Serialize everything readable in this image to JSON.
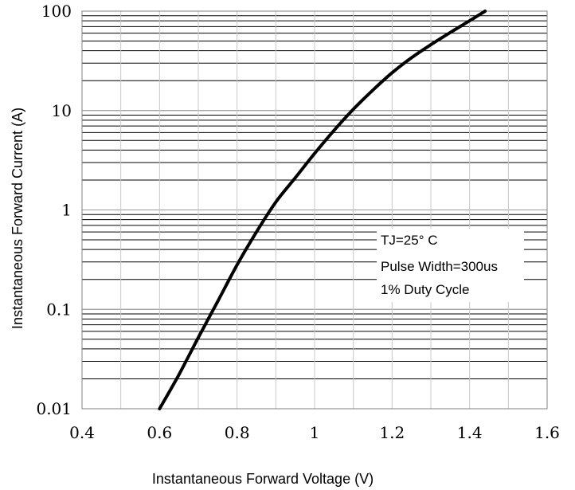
{
  "chart_data": {
    "type": "line",
    "title": "",
    "xlabel": "Instantaneous Forward Voltage (V)",
    "ylabel": "Instantaneous Forward Current (A)",
    "xlim": [
      0.4,
      1.6
    ],
    "ylim": [
      0.01,
      100
    ],
    "yscale": "log",
    "grid": true,
    "x_ticks": [
      {
        "value": 0.4,
        "label": "0.4"
      },
      {
        "value": 0.6,
        "label": "0.6"
      },
      {
        "value": 0.8,
        "label": "0.8"
      },
      {
        "value": 1.0,
        "label": "1"
      },
      {
        "value": 1.2,
        "label": "1.2"
      },
      {
        "value": 1.4,
        "label": "1.4"
      },
      {
        "value": 1.6,
        "label": "1.6"
      }
    ],
    "y_ticks": [
      {
        "value": 0.01,
        "label": "0.01"
      },
      {
        "value": 0.1,
        "label": "0.1"
      },
      {
        "value": 1,
        "label": "1"
      },
      {
        "value": 10,
        "label": "10"
      },
      {
        "value": 100,
        "label": "100"
      }
    ],
    "annotations": [
      "TJ=25° C",
      "Pulse Width=300us",
      "1% Duty Cycle"
    ],
    "series": [
      {
        "color": "#000000",
        "x": [
          0.6,
          0.65,
          0.7,
          0.75,
          0.8,
          0.85,
          0.9,
          0.95,
          1.0,
          1.05,
          1.1,
          1.15,
          1.2,
          1.25,
          1.3,
          1.35,
          1.4,
          1.44
        ],
        "y": [
          0.01,
          0.022,
          0.052,
          0.12,
          0.28,
          0.6,
          1.2,
          2.1,
          3.7,
          6.3,
          10.3,
          16,
          24,
          34,
          46,
          61,
          80,
          100
        ]
      }
    ]
  }
}
